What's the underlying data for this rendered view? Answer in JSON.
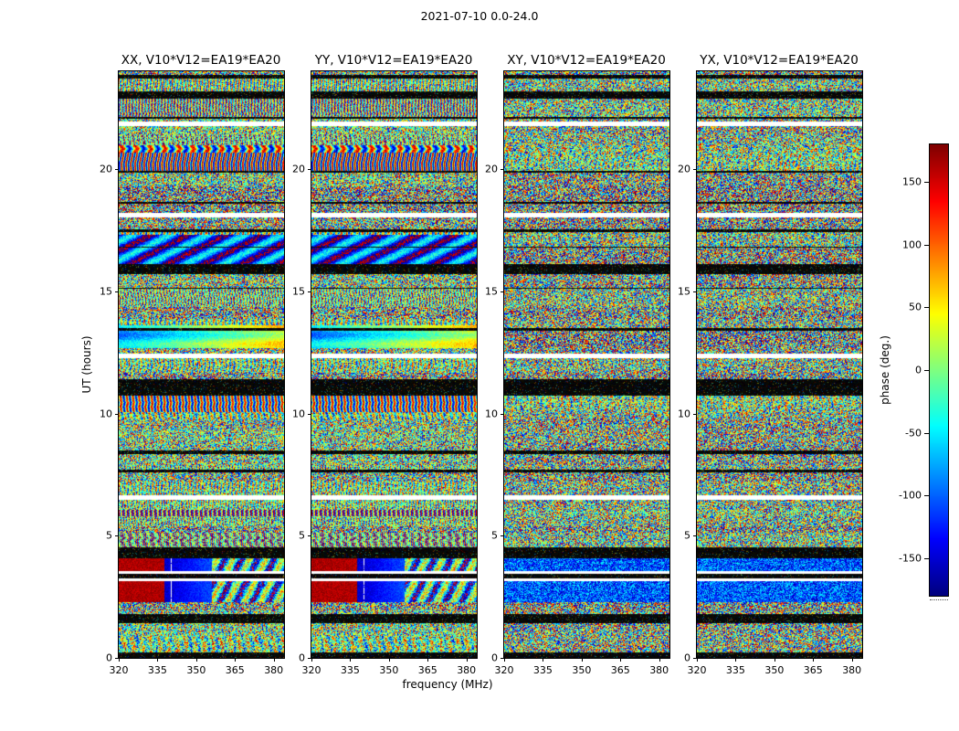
{
  "chart_data": {
    "type": "heatmap",
    "title": "2021-07-10 0.0-24.0",
    "panels": [
      {
        "title": "XX, V10*V12=EA19*EA20"
      },
      {
        "title": "YY, V10*V12=EA19*EA20"
      },
      {
        "title": "XY, V10*V12=EA19*EA20"
      },
      {
        "title": "YX, V10*V12=EA19*EA20"
      }
    ],
    "xlabel": "frequency (MHz)",
    "ylabel": "UT (hours)",
    "x_ticks": [
      "320",
      "335",
      "350",
      "365",
      "380"
    ],
    "y_ticks": [
      "0",
      "5",
      "10",
      "15",
      "20"
    ],
    "xlim": [
      320,
      384
    ],
    "ylim": [
      0,
      24
    ],
    "colorbar": {
      "label": "phase (deg.)",
      "ticks": [
        "150",
        "100",
        "50",
        "0",
        "-50",
        "-100",
        "-150"
      ],
      "vmin": -180,
      "vmax": 180,
      "colormap": "jet",
      "colormap_anchors": [
        "#00007f",
        "#0000ff",
        "#00ffff",
        "#7fff7f",
        "#ffff00",
        "#ff0000",
        "#7f0000"
      ]
    }
  }
}
